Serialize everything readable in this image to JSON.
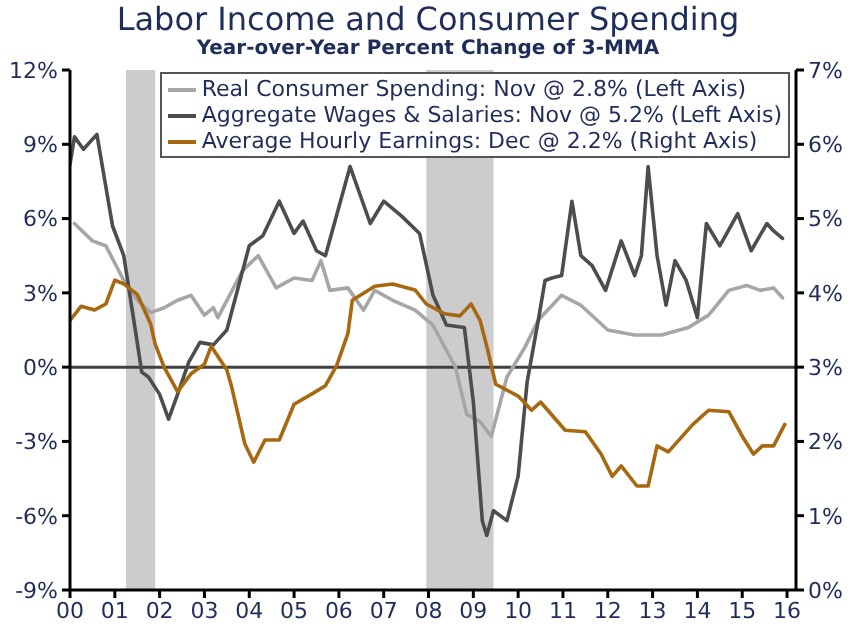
{
  "chart_data": {
    "type": "line",
    "title": "Labor Income and Consumer Spending",
    "subtitle": "Year-over-Year Percent Change of 3-MMA",
    "series": [
      {
        "name": "Real Consumer Spending: Nov @ 2.8% (Left Axis)",
        "color": "#a6a6a6",
        "x": [
          2000.1,
          2000.5,
          2000.8,
          2001.2,
          2001.5,
          2001.8,
          2002.1,
          2002.4,
          2002.7,
          2003.0,
          2003.2,
          2003.3,
          2003.85,
          2004.2,
          2004.6,
          2005.0,
          2005.4,
          2005.6,
          2005.8,
          2006.2,
          2006.55,
          2006.8,
          2007.2,
          2007.7,
          2008.1,
          2008.6,
          2008.85,
          2009.15,
          2009.4,
          2009.75,
          2010.15,
          2010.45,
          2010.97,
          2011.4,
          2012.0,
          2012.6,
          2013.2,
          2013.8,
          2014.25,
          2014.7,
          2015.1,
          2015.4,
          2015.7,
          2015.9
        ],
        "values": [
          5.8,
          5.1,
          4.9,
          3.5,
          2.7,
          2.2,
          2.4,
          2.7,
          2.9,
          2.1,
          2.4,
          2.0,
          3.9,
          4.5,
          3.2,
          3.6,
          3.5,
          4.3,
          3.1,
          3.2,
          2.3,
          3.1,
          2.7,
          2.3,
          1.7,
          0.0,
          -1.9,
          -2.2,
          -2.8,
          -0.4,
          0.8,
          1.9,
          2.9,
          2.5,
          1.5,
          1.3,
          1.3,
          1.6,
          2.1,
          3.1,
          3.3,
          3.1,
          3.2,
          2.8
        ]
      },
      {
        "name": "Aggregate Wages & Salaries: Nov @ 5.2% (Left Axis)",
        "color": "#4d4d4d",
        "x": [
          2000.0,
          2000.1,
          2000.3,
          2000.6,
          2000.95,
          2001.2,
          2001.5,
          2001.6,
          2001.75,
          2002.0,
          2002.2,
          2002.4,
          2002.65,
          2002.9,
          2003.2,
          2003.5,
          2004.0,
          2004.3,
          2004.67,
          2005.0,
          2005.2,
          2005.5,
          2005.7,
          2006.25,
          2006.7,
          2007.0,
          2007.4,
          2007.8,
          2008.1,
          2008.4,
          2008.8,
          2009.0,
          2009.2,
          2009.3,
          2009.45,
          2009.75,
          2010.0,
          2010.2,
          2010.45,
          2010.6,
          2010.75,
          2010.97,
          2011.2,
          2011.4,
          2011.65,
          2011.95,
          2012.3,
          2012.6,
          2012.75,
          2012.9,
          2013.1,
          2013.3,
          2013.5,
          2013.75,
          2014.0,
          2014.2,
          2014.5,
          2014.9,
          2015.2,
          2015.55,
          2015.7,
          2015.9
        ],
        "values": [
          8.2,
          9.3,
          8.8,
          9.4,
          5.7,
          4.5,
          1.0,
          -0.2,
          -0.4,
          -1.1,
          -2.1,
          -1.1,
          0.2,
          1.0,
          0.9,
          1.5,
          4.9,
          5.3,
          6.7,
          5.4,
          5.9,
          4.7,
          4.5,
          8.1,
          5.8,
          6.7,
          6.1,
          5.4,
          2.9,
          1.7,
          1.6,
          -1.4,
          -6.2,
          -6.8,
          -5.8,
          -6.2,
          -4.4,
          -0.6,
          1.9,
          3.5,
          3.6,
          3.7,
          6.7,
          4.5,
          4.1,
          3.1,
          5.1,
          3.7,
          4.5,
          8.1,
          4.5,
          2.5,
          4.3,
          3.5,
          2.0,
          5.8,
          4.9,
          6.2,
          4.7,
          5.8,
          5.5,
          5.2
        ]
      },
      {
        "name": "Average Hourly Earnings: Dec @ 2.2% (Right Axis)",
        "color": "#a8680f",
        "axis": "y2",
        "x": [
          2000.0,
          2000.25,
          2000.55,
          2000.8,
          2001.0,
          2001.2,
          2001.5,
          2001.8,
          2001.9,
          2002.1,
          2002.4,
          2002.7,
          2003.0,
          2003.15,
          2003.5,
          2003.6,
          2003.9,
          2004.1,
          2004.35,
          2004.67,
          2005.0,
          2005.4,
          2005.7,
          2005.95,
          2006.2,
          2006.3,
          2006.8,
          2007.2,
          2007.7,
          2007.95,
          2008.35,
          2008.7,
          2008.95,
          2009.15,
          2009.3,
          2009.5,
          2010.0,
          2010.3,
          2010.5,
          2011.05,
          2011.5,
          2011.85,
          2012.1,
          2012.3,
          2012.65,
          2012.9,
          2013.1,
          2013.35,
          2013.9,
          2014.25,
          2014.7,
          2015.0,
          2015.25,
          2015.45,
          2015.7,
          2015.95
        ],
        "values": [
          3.63,
          3.82,
          3.77,
          3.85,
          4.17,
          4.12,
          3.98,
          3.58,
          3.31,
          3.0,
          2.67,
          2.91,
          3.04,
          3.28,
          2.96,
          2.75,
          1.97,
          1.72,
          2.02,
          2.02,
          2.5,
          2.64,
          2.75,
          3.02,
          3.45,
          3.9,
          4.09,
          4.12,
          4.04,
          3.85,
          3.72,
          3.69,
          3.85,
          3.63,
          3.28,
          2.77,
          2.61,
          2.42,
          2.53,
          2.15,
          2.13,
          1.83,
          1.53,
          1.67,
          1.4,
          1.4,
          1.94,
          1.86,
          2.23,
          2.42,
          2.4,
          2.07,
          1.83,
          1.94,
          1.94,
          2.23
        ]
      }
    ],
    "xlim": [
      2000,
      2016.2
    ],
    "xticks": [
      {
        "value": 2000,
        "label": "00"
      },
      {
        "value": 2001,
        "label": "01"
      },
      {
        "value": 2002,
        "label": "02"
      },
      {
        "value": 2003,
        "label": "03"
      },
      {
        "value": 2004,
        "label": "04"
      },
      {
        "value": 2005,
        "label": "05"
      },
      {
        "value": 2006,
        "label": "06"
      },
      {
        "value": 2007,
        "label": "07"
      },
      {
        "value": 2008,
        "label": "08"
      },
      {
        "value": 2009,
        "label": "09"
      },
      {
        "value": 2010,
        "label": "10"
      },
      {
        "value": 2011,
        "label": "11"
      },
      {
        "value": 2012,
        "label": "12"
      },
      {
        "value": 2013,
        "label": "13"
      },
      {
        "value": 2014,
        "label": "14"
      },
      {
        "value": 2015,
        "label": "15"
      },
      {
        "value": 2016,
        "label": "16"
      }
    ],
    "ylim": [
      -9,
      12
    ],
    "yticks": [
      {
        "value": -9,
        "label": "-9%"
      },
      {
        "value": -6,
        "label": "-6%"
      },
      {
        "value": -3,
        "label": "-3%"
      },
      {
        "value": 0,
        "label": "0%"
      },
      {
        "value": 3,
        "label": "3%"
      },
      {
        "value": 6,
        "label": "6%"
      },
      {
        "value": 9,
        "label": "9%"
      },
      {
        "value": 12,
        "label": "12%"
      }
    ],
    "y2lim": [
      0,
      7
    ],
    "y2ticks": [
      {
        "value": 0,
        "label": "0%"
      },
      {
        "value": 1,
        "label": "1%"
      },
      {
        "value": 2,
        "label": "2%"
      },
      {
        "value": 3,
        "label": "3%"
      },
      {
        "value": 4,
        "label": "4%"
      },
      {
        "value": 5,
        "label": "5%"
      },
      {
        "value": 6,
        "label": "6%"
      },
      {
        "value": 7,
        "label": "7%"
      }
    ],
    "bands": [
      {
        "axis": "x",
        "from": 2001.25,
        "to": 2001.9,
        "color": "#cccccc"
      },
      {
        "axis": "x",
        "from": 2007.95,
        "to": 2009.45,
        "color": "#cccccc"
      }
    ],
    "ref_lines": [
      {
        "axis": "y",
        "value": 0,
        "color": "#404040"
      }
    ],
    "grid": false,
    "legend": "top right",
    "marker": "none",
    "line_style": "solid"
  }
}
